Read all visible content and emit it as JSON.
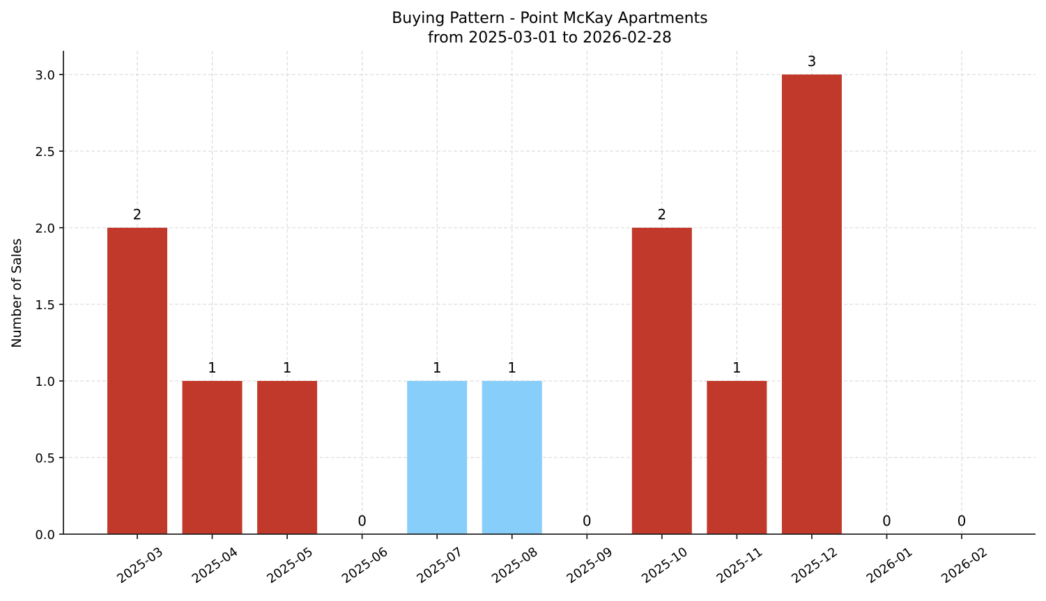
{
  "chart_data": {
    "type": "bar",
    "title": "Buying Pattern - Point McKay Apartments",
    "subtitle": "from 2025-03-01 to 2026-02-28",
    "xlabel": "",
    "ylabel": "Number of Sales",
    "categories": [
      "2025-03",
      "2025-04",
      "2025-05",
      "2025-06",
      "2025-07",
      "2025-08",
      "2025-09",
      "2025-10",
      "2025-11",
      "2025-12",
      "2026-01",
      "2026-02"
    ],
    "values": [
      2,
      1,
      1,
      0,
      1,
      1,
      0,
      2,
      1,
      3,
      0,
      0
    ],
    "bar_colors": [
      "#c0392b",
      "#c0392b",
      "#c0392b",
      "#c0392b",
      "#87cefa",
      "#87cefa",
      "#c0392b",
      "#c0392b",
      "#c0392b",
      "#c0392b",
      "#c0392b",
      "#c0392b"
    ],
    "data_labels": [
      "2",
      "1",
      "1",
      "0",
      "1",
      "1",
      "0",
      "2",
      "1",
      "3",
      "0",
      "0"
    ],
    "yticks": [
      0.0,
      0.5,
      1.0,
      1.5,
      2.0,
      2.5,
      3.0
    ],
    "ytick_labels": [
      "0.0",
      "0.5",
      "1.0",
      "1.5",
      "2.0",
      "2.5",
      "3.0"
    ],
    "ylim": [
      0,
      3.15
    ],
    "grid": true,
    "legend": null,
    "colors": {
      "primary": "#c0392b",
      "highlight": "#87cefa"
    }
  }
}
